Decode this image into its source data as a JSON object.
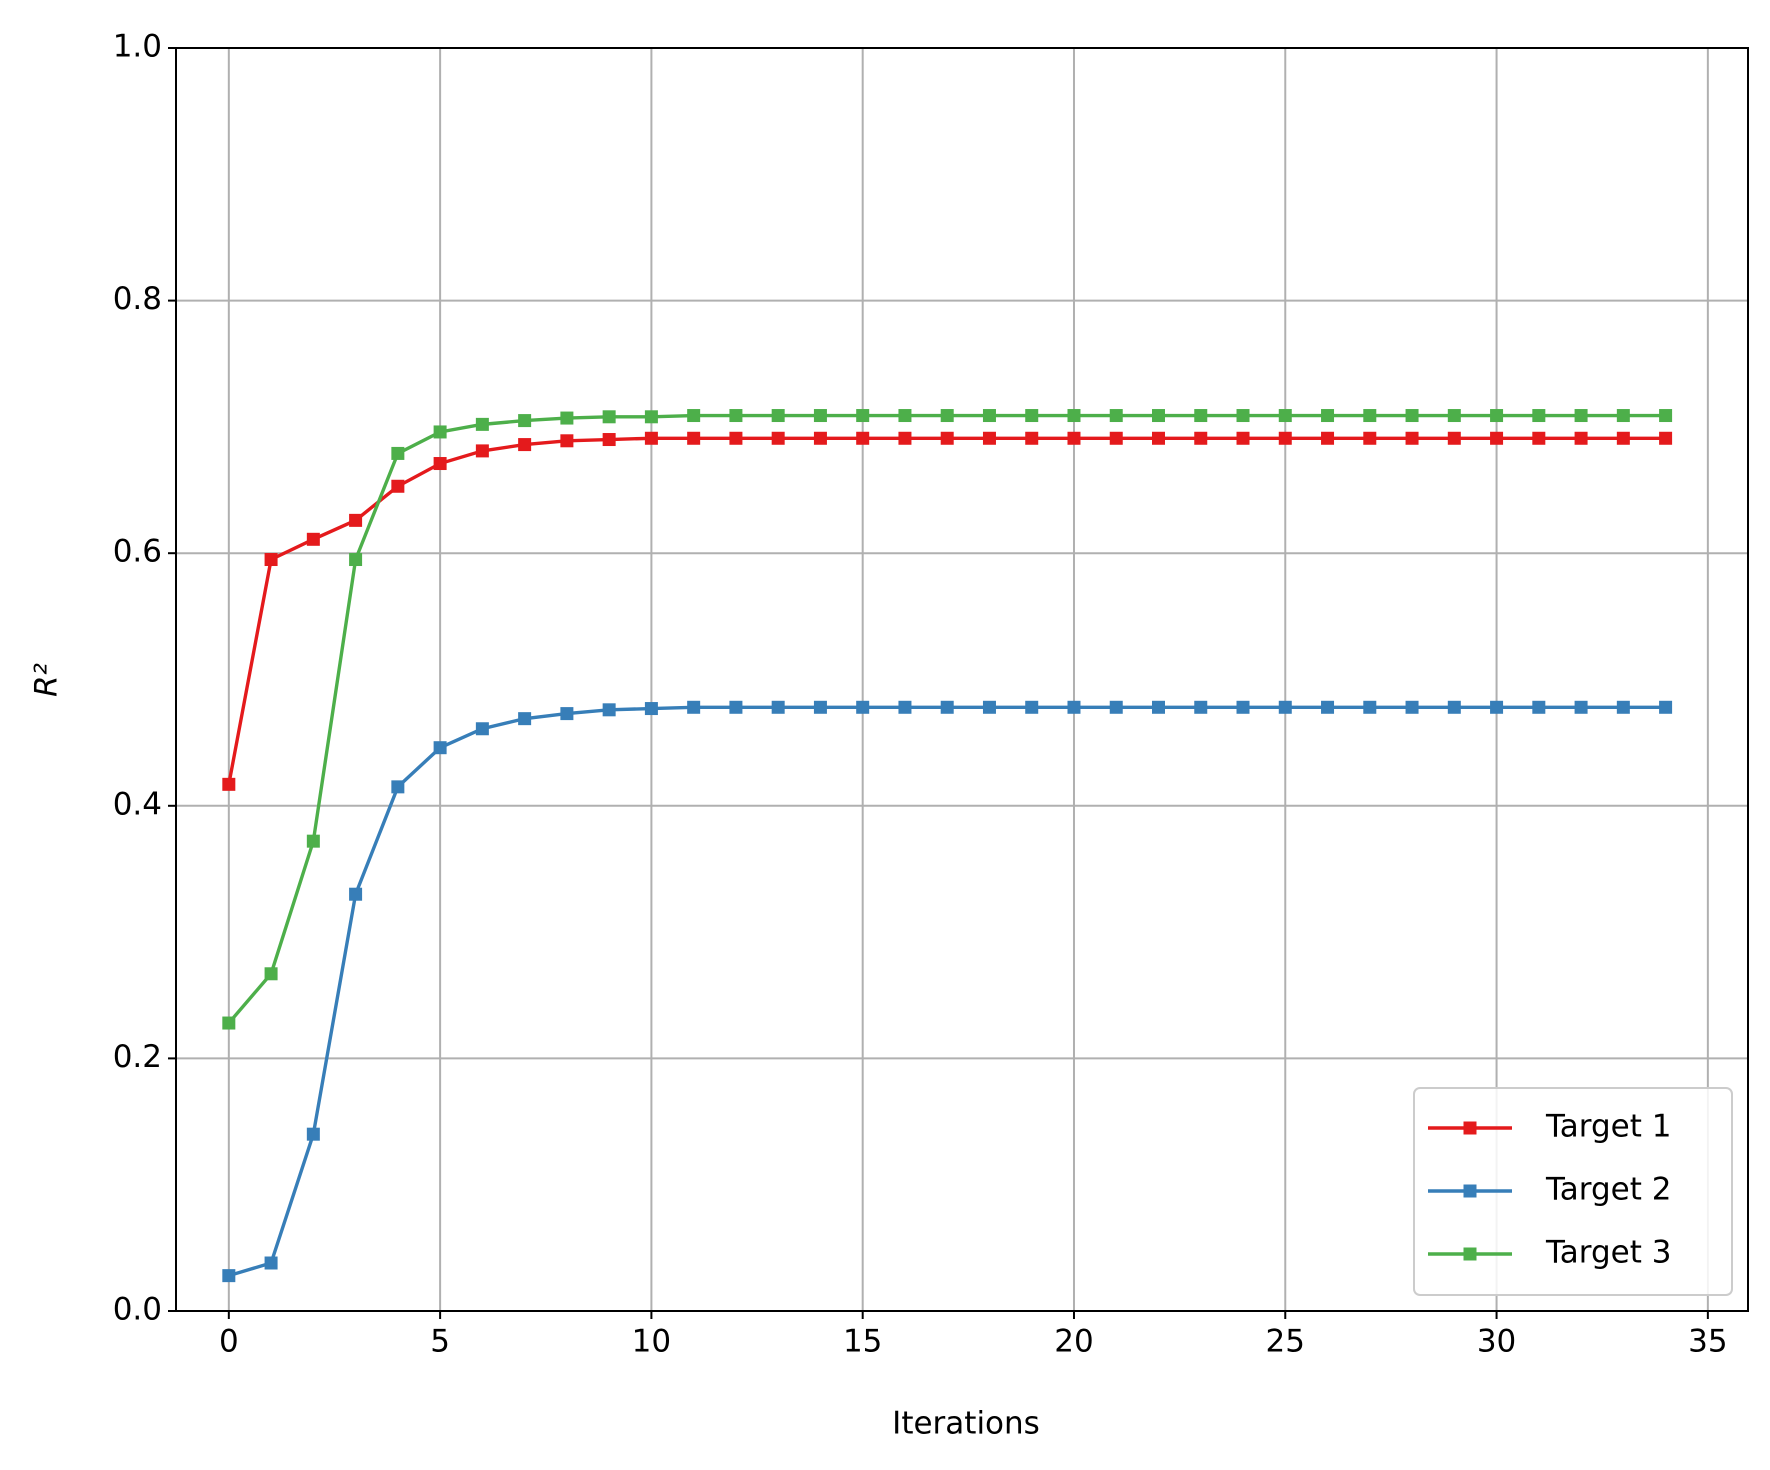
{
  "chart_data": {
    "type": "line",
    "xlabel": "Iterations",
    "ylabel": "R²",
    "x": [
      0,
      1,
      2,
      3,
      4,
      5,
      6,
      7,
      8,
      9,
      10,
      11,
      12,
      13,
      14,
      15,
      16,
      17,
      18,
      19,
      20,
      21,
      22,
      23,
      24,
      25,
      26,
      27,
      28,
      29,
      30,
      31,
      32,
      33,
      34
    ],
    "series": [
      {
        "name": "Target 1",
        "color": "#e41a1c",
        "values": [
          0.417,
          0.595,
          0.611,
          0.626,
          0.653,
          0.671,
          0.681,
          0.686,
          0.689,
          0.69,
          0.691,
          0.691,
          0.691,
          0.691,
          0.691,
          0.691,
          0.691,
          0.691,
          0.691,
          0.691,
          0.691,
          0.691,
          0.691,
          0.691,
          0.691,
          0.691,
          0.691,
          0.691,
          0.691,
          0.691,
          0.691,
          0.691,
          0.691,
          0.691,
          0.691
        ]
      },
      {
        "name": "Target 2",
        "color": "#377eb8",
        "values": [
          0.028,
          0.038,
          0.14,
          0.33,
          0.415,
          0.446,
          0.461,
          0.469,
          0.473,
          0.476,
          0.477,
          0.478,
          0.478,
          0.478,
          0.478,
          0.478,
          0.478,
          0.478,
          0.478,
          0.478,
          0.478,
          0.478,
          0.478,
          0.478,
          0.478,
          0.478,
          0.478,
          0.478,
          0.478,
          0.478,
          0.478,
          0.478,
          0.478,
          0.478,
          0.478
        ]
      },
      {
        "name": "Target 3",
        "color": "#4daf4a",
        "values": [
          0.228,
          0.267,
          0.372,
          0.595,
          0.679,
          0.696,
          0.702,
          0.705,
          0.707,
          0.708,
          0.708,
          0.709,
          0.709,
          0.709,
          0.709,
          0.709,
          0.709,
          0.709,
          0.709,
          0.709,
          0.709,
          0.709,
          0.709,
          0.709,
          0.709,
          0.709,
          0.709,
          0.709,
          0.709,
          0.709,
          0.709,
          0.709,
          0.709,
          0.709,
          0.709
        ]
      }
    ],
    "xlim": [
      -1.25,
      35.95
    ],
    "xticks": [
      0,
      5,
      10,
      15,
      20,
      25,
      30,
      35
    ],
    "ylim": [
      0,
      1
    ],
    "yticks": [
      {
        "value": 0,
        "label": "0.0"
      },
      0.2,
      0.4,
      0.6,
      0.8,
      {
        "value": 1,
        "label": "1.0"
      }
    ],
    "grid": true,
    "legend": "lower right"
  }
}
